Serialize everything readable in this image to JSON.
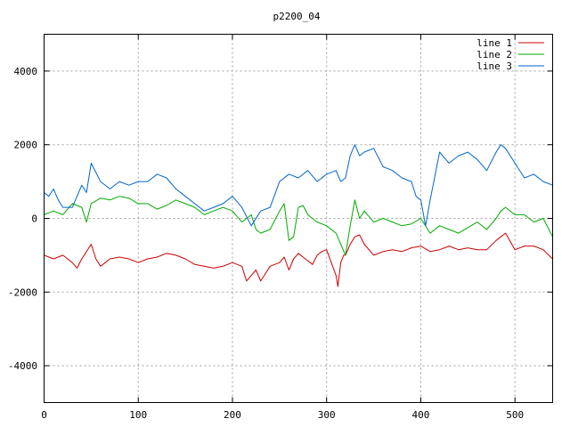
{
  "chart_data": {
    "type": "line",
    "title": "p2200_04",
    "xlabel": "",
    "ylabel": "",
    "xlim": [
      0,
      540
    ],
    "ylim": [
      -5000,
      5000
    ],
    "x_ticks": [
      0,
      100,
      200,
      300,
      400,
      500
    ],
    "y_ticks": [
      -4000,
      -2000,
      0,
      2000,
      4000
    ],
    "grid": true,
    "legend_position": "top-right",
    "series": [
      {
        "name": "line 1",
        "color": "#cc0000",
        "x": [
          0,
          10,
          20,
          30,
          35,
          40,
          45,
          50,
          55,
          60,
          70,
          80,
          90,
          100,
          110,
          120,
          130,
          140,
          150,
          160,
          170,
          180,
          190,
          200,
          210,
          215,
          220,
          225,
          230,
          235,
          240,
          250,
          255,
          260,
          265,
          270,
          275,
          280,
          285,
          290,
          295,
          300,
          305,
          310,
          312,
          315,
          318,
          320,
          325,
          330,
          335,
          340,
          350,
          360,
          370,
          380,
          390,
          400,
          410,
          420,
          430,
          440,
          450,
          460,
          470,
          480,
          485,
          490,
          500,
          510,
          520,
          530,
          540
        ],
        "values": [
          -1000,
          -1100,
          -1000,
          -1200,
          -1350,
          -1100,
          -900,
          -700,
          -1100,
          -1300,
          -1100,
          -1050,
          -1100,
          -1200,
          -1100,
          -1050,
          -950,
          -1000,
          -1100,
          -1250,
          -1300,
          -1350,
          -1300,
          -1200,
          -1300,
          -1700,
          -1550,
          -1400,
          -1700,
          -1500,
          -1300,
          -1200,
          -1050,
          -1400,
          -1100,
          -950,
          -1050,
          -1150,
          -1250,
          -1000,
          -900,
          -850,
          -1200,
          -1550,
          -1850,
          -1200,
          -1000,
          -1000,
          -700,
          -500,
          -450,
          -700,
          -1000,
          -900,
          -850,
          -900,
          -800,
          -750,
          -900,
          -850,
          -750,
          -850,
          -800,
          -850,
          -850,
          -600,
          -500,
          -400,
          -850,
          -750,
          -750,
          -850,
          -1100
        ]
      },
      {
        "name": "line 2",
        "color": "#00aa00",
        "x": [
          0,
          10,
          20,
          30,
          40,
          45,
          50,
          60,
          70,
          80,
          90,
          100,
          110,
          120,
          130,
          140,
          150,
          160,
          170,
          180,
          190,
          200,
          210,
          220,
          225,
          230,
          240,
          250,
          255,
          260,
          265,
          270,
          275,
          280,
          290,
          300,
          310,
          315,
          320,
          325,
          330,
          335,
          340,
          350,
          360,
          370,
          380,
          390,
          400,
          410,
          420,
          430,
          440,
          450,
          460,
          470,
          480,
          485,
          490,
          500,
          510,
          520,
          530,
          540
        ],
        "values": [
          100,
          200,
          100,
          400,
          300,
          -100,
          400,
          550,
          500,
          600,
          550,
          400,
          400,
          250,
          350,
          500,
          400,
          300,
          100,
          200,
          300,
          200,
          -100,
          100,
          -300,
          -400,
          -300,
          200,
          400,
          -600,
          -500,
          300,
          350,
          100,
          -100,
          -200,
          -400,
          -700,
          -1000,
          -200,
          500,
          0,
          200,
          -100,
          0,
          -100,
          -200,
          -150,
          0,
          -400,
          -200,
          -300,
          -400,
          -250,
          -100,
          -300,
          0,
          200,
          300,
          100,
          100,
          -100,
          0,
          -500
        ]
      },
      {
        "name": "line 3",
        "color": "#0066cc",
        "x": [
          0,
          5,
          10,
          15,
          20,
          30,
          40,
          45,
          50,
          60,
          70,
          80,
          90,
          100,
          110,
          120,
          130,
          140,
          150,
          160,
          170,
          180,
          190,
          200,
          210,
          220,
          230,
          240,
          250,
          260,
          270,
          280,
          290,
          300,
          310,
          315,
          320,
          325,
          330,
          335,
          340,
          350,
          360,
          370,
          380,
          390,
          395,
          400,
          405,
          410,
          420,
          430,
          440,
          450,
          460,
          470,
          480,
          485,
          490,
          500,
          510,
          520,
          530,
          540
        ],
        "values": [
          700,
          600,
          800,
          500,
          300,
          300,
          900,
          700,
          1500,
          1000,
          800,
          1000,
          900,
          1000,
          1000,
          1200,
          1100,
          800,
          600,
          400,
          200,
          300,
          400,
          600,
          300,
          -200,
          200,
          300,
          1000,
          1200,
          1100,
          1300,
          1000,
          1200,
          1300,
          1000,
          1100,
          1700,
          2000,
          1700,
          1800,
          1900,
          1400,
          1300,
          1100,
          1000,
          600,
          500,
          -200,
          500,
          1800,
          1500,
          1700,
          1800,
          1600,
          1300,
          1800,
          2000,
          1900,
          1500,
          1100,
          1200,
          1000,
          900
        ]
      }
    ]
  }
}
